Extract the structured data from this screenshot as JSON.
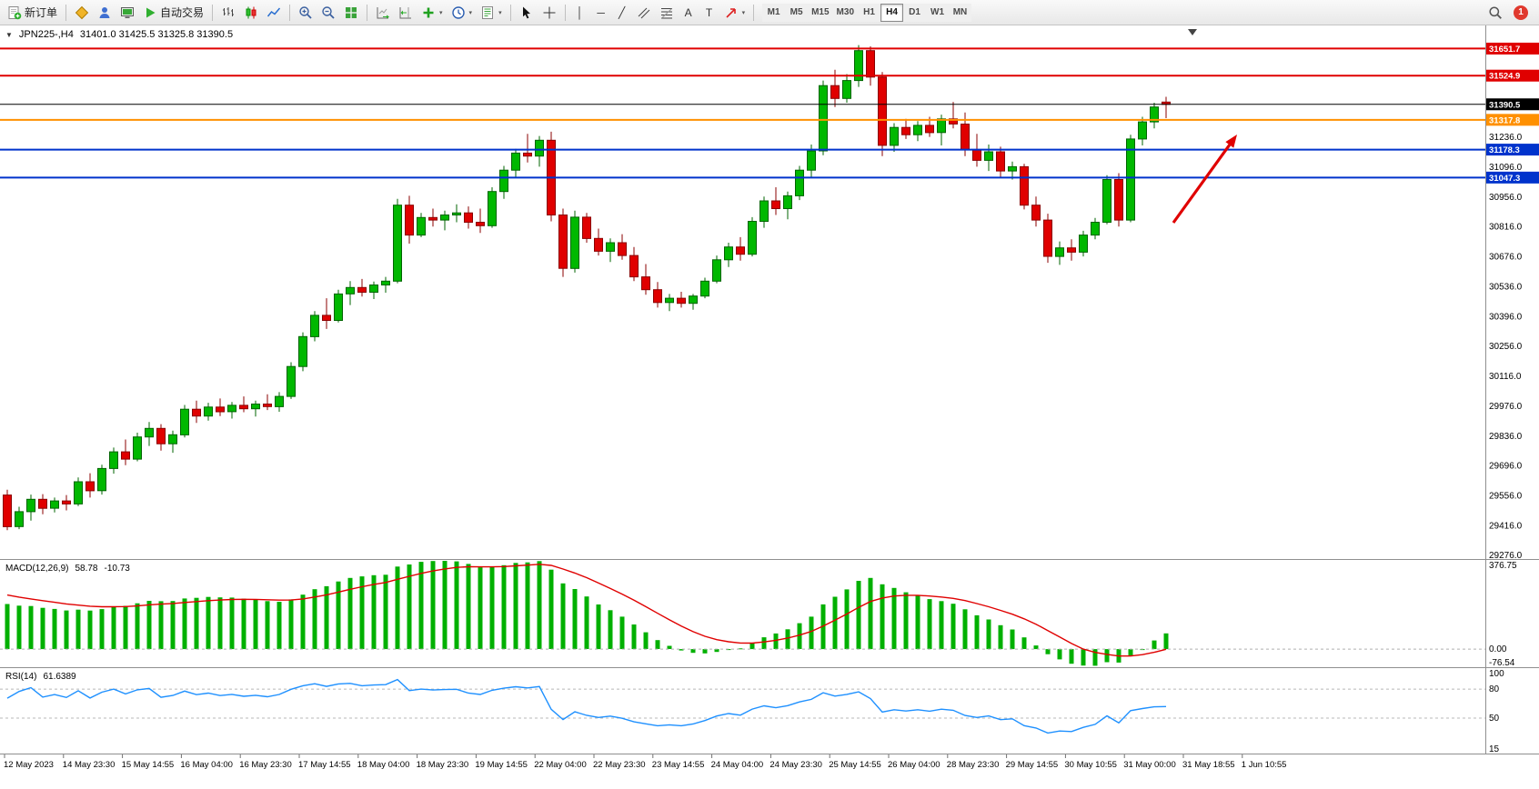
{
  "toolbar": {
    "new_order_label": "新订单",
    "autotrade_label": "自动交易",
    "timeframes": [
      "M1",
      "M5",
      "M15",
      "M30",
      "H1",
      "H4",
      "D1",
      "W1",
      "MN"
    ],
    "active_timeframe": "H4",
    "notification_count": "1",
    "glyphs": {
      "dropdown": "▾",
      "vline": "│",
      "hline": "─",
      "trendline": "╱",
      "text_tool": "A",
      "label_tool": "T"
    }
  },
  "header": {
    "collapse_icon": "▼",
    "symbol_period": "JPN225-,H4",
    "ohlc_text": "31401.0 31425.5 31325.8 31390.5"
  },
  "chart_data": {
    "type": "candlestick",
    "title": "JPN225-,H4",
    "y_range": [
      29260,
      31760
    ],
    "y_axis_ticks": [
      "31236.0",
      "31096.0",
      "30956.0",
      "30816.0",
      "30676.0",
      "30536.0",
      "30396.0",
      "30256.0",
      "30116.0",
      "29976.0",
      "29836.0",
      "29696.0",
      "29556.0",
      "29416.0",
      "29276.0"
    ],
    "x_labels": [
      "12 May 2023",
      "14 May 23:30",
      "15 May 14:55",
      "16 May 04:00",
      "16 May 23:30",
      "17 May 14:55",
      "18 May 04:00",
      "18 May 23:30",
      "19 May 14:55",
      "22 May 04:00",
      "22 May 23:30",
      "23 May 14:55",
      "24 May 04:00",
      "24 May 23:30",
      "25 May 14:55",
      "26 May 04:00",
      "28 May 23:30",
      "29 May 14:55",
      "30 May 10:55",
      "31 May 00:00",
      "31 May 18:55",
      "1 Jun 10:55"
    ],
    "levels": [
      {
        "price": 31651.7,
        "label": "31651.7",
        "color": "#e00000",
        "width": 2
      },
      {
        "price": 31524.9,
        "label": "31524.9",
        "color": "#e00000",
        "width": 2
      },
      {
        "price": 31390.5,
        "label": "31390.5",
        "color": "#000000",
        "width": 1,
        "current": true
      },
      {
        "price": 31317.8,
        "label": "31317.8",
        "color": "#ff9000",
        "width": 2
      },
      {
        "price": 31178.3,
        "label": "31178.3",
        "color": "#0033cc",
        "width": 2
      },
      {
        "price": 31047.3,
        "label": "31047.3",
        "color": "#0033cc",
        "width": 2
      }
    ],
    "arrow_annotation": {
      "from": [
        1290,
        217
      ],
      "to": [
        1360,
        120
      ],
      "color": "#e00000"
    },
    "candles": [
      [
        29560,
        29585,
        29395,
        29412
      ],
      [
        29412,
        29505,
        29400,
        29482
      ],
      [
        29482,
        29562,
        29440,
        29540
      ],
      [
        29540,
        29564,
        29470,
        29498
      ],
      [
        29498,
        29548,
        29478,
        29532
      ],
      [
        29532,
        29560,
        29488,
        29518
      ],
      [
        29518,
        29642,
        29508,
        29622
      ],
      [
        29622,
        29662,
        29548,
        29580
      ],
      [
        29580,
        29702,
        29562,
        29684
      ],
      [
        29684,
        29782,
        29660,
        29762
      ],
      [
        29762,
        29820,
        29700,
        29728
      ],
      [
        29728,
        29852,
        29718,
        29832
      ],
      [
        29832,
        29902,
        29790,
        29872
      ],
      [
        29872,
        29892,
        29768,
        29800
      ],
      [
        29800,
        29862,
        29758,
        29842
      ],
      [
        29842,
        29982,
        29830,
        29962
      ],
      [
        29962,
        30002,
        29898,
        29930
      ],
      [
        29930,
        29992,
        29908,
        29972
      ],
      [
        29972,
        30012,
        29930,
        29950
      ],
      [
        29950,
        29996,
        29918,
        29980
      ],
      [
        29980,
        30022,
        29948,
        29964
      ],
      [
        29964,
        30002,
        29928,
        29986
      ],
      [
        29986,
        30032,
        29958,
        29974
      ],
      [
        29974,
        30042,
        29950,
        30022
      ],
      [
        30022,
        30182,
        30010,
        30162
      ],
      [
        30162,
        30322,
        30140,
        30302
      ],
      [
        30302,
        30422,
        30280,
        30402
      ],
      [
        30402,
        30482,
        30338,
        30378
      ],
      [
        30378,
        30522,
        30368,
        30502
      ],
      [
        30502,
        30562,
        30450,
        30532
      ],
      [
        30532,
        30572,
        30490,
        30510
      ],
      [
        30510,
        30560,
        30478,
        30544
      ],
      [
        30544,
        30582,
        30508,
        30562
      ],
      [
        30562,
        30948,
        30552,
        30918
      ],
      [
        30918,
        30962,
        30738,
        30778
      ],
      [
        30778,
        30882,
        30768,
        30860
      ],
      [
        30860,
        30902,
        30818,
        30848
      ],
      [
        30848,
        30892,
        30800,
        30872
      ],
      [
        30872,
        30922,
        30838,
        30882
      ],
      [
        30882,
        30912,
        30808,
        30838
      ],
      [
        30838,
        30902,
        30788,
        30822
      ],
      [
        30822,
        31002,
        30812,
        30982
      ],
      [
        30982,
        31102,
        30948,
        31082
      ],
      [
        31082,
        31182,
        31048,
        31162
      ],
      [
        31162,
        31252,
        31118,
        31148
      ],
      [
        31148,
        31242,
        31098,
        31222
      ],
      [
        31222,
        31262,
        30842,
        30872
      ],
      [
        30872,
        30902,
        30582,
        30622
      ],
      [
        30622,
        30892,
        30602,
        30862
      ],
      [
        30862,
        30882,
        30742,
        30762
      ],
      [
        30762,
        30808,
        30682,
        30702
      ],
      [
        30702,
        30762,
        30652,
        30742
      ],
      [
        30742,
        30782,
        30662,
        30682
      ],
      [
        30682,
        30722,
        30562,
        30582
      ],
      [
        30582,
        30642,
        30498,
        30522
      ],
      [
        30522,
        30558,
        30438,
        30462
      ],
      [
        30462,
        30502,
        30422,
        30482
      ],
      [
        30482,
        30512,
        30438,
        30458
      ],
      [
        30458,
        30502,
        30428,
        30492
      ],
      [
        30492,
        30578,
        30482,
        30562
      ],
      [
        30562,
        30682,
        30552,
        30662
      ],
      [
        30662,
        30742,
        30628,
        30722
      ],
      [
        30722,
        30768,
        30658,
        30688
      ],
      [
        30688,
        30862,
        30678,
        30842
      ],
      [
        30842,
        30958,
        30812,
        30938
      ],
      [
        30938,
        31002,
        30872,
        30902
      ],
      [
        30902,
        30982,
        30852,
        30962
      ],
      [
        30962,
        31102,
        30942,
        31082
      ],
      [
        31082,
        31202,
        31048,
        31172
      ],
      [
        31172,
        31502,
        31152,
        31478
      ],
      [
        31478,
        31552,
        31378,
        31418
      ],
      [
        31418,
        31532,
        31398,
        31502
      ],
      [
        31502,
        31668,
        31472,
        31642
      ],
      [
        31642,
        31662,
        31478,
        31518
      ],
      [
        31518,
        31542,
        31148,
        31198
      ],
      [
        31198,
        31302,
        31168,
        31282
      ],
      [
        31282,
        31322,
        31228,
        31248
      ],
      [
        31248,
        31312,
        31218,
        31292
      ],
      [
        31292,
        31332,
        31238,
        31258
      ],
      [
        31258,
        31342,
        31198,
        31322
      ],
      [
        31322,
        31402,
        31278,
        31298
      ],
      [
        31298,
        31352,
        31148,
        31178
      ],
      [
        31178,
        31252,
        31098,
        31128
      ],
      [
        31128,
        31202,
        31078,
        31168
      ],
      [
        31168,
        31192,
        31048,
        31078
      ],
      [
        31078,
        31122,
        31038,
        31098
      ],
      [
        31098,
        31112,
        30898,
        30918
      ],
      [
        30918,
        30958,
        30818,
        30848
      ],
      [
        30848,
        30878,
        30648,
        30678
      ],
      [
        30678,
        30748,
        30638,
        30718
      ],
      [
        30718,
        30758,
        30658,
        30698
      ],
      [
        30698,
        30798,
        30678,
        30778
      ],
      [
        30778,
        30858,
        30758,
        30838
      ],
      [
        30838,
        31058,
        30828,
        31038
      ],
      [
        31038,
        31068,
        30818,
        30848
      ],
      [
        30848,
        31248,
        30838,
        31228
      ],
      [
        31228,
        31332,
        31198,
        31308
      ],
      [
        31308,
        31398,
        31278,
        31378
      ],
      [
        31401.0,
        31425.5,
        31325.8,
        31390.5
      ]
    ]
  },
  "macd_panel": {
    "label": "MACD(12,26,9)",
    "value_main": "58.78",
    "value_signal": "-10.73",
    "fast": 12,
    "slow": 26,
    "signal": 9,
    "axis_labels": [
      "376.75",
      "0.00",
      "-76.54"
    ],
    "histogram_color": "#00b000",
    "signal_color": "#e00000"
  },
  "rsi_panel": {
    "label": "RSI(14)",
    "value": "61.6389",
    "period": 14,
    "axis_labels": [
      "100",
      "80",
      "50",
      "15"
    ],
    "level_lines": [
      80,
      50
    ],
    "line_color": "#1e90ff"
  },
  "colors": {
    "up": "#00b800",
    "up_border": "#006400",
    "down": "#e00000",
    "down_border": "#8b0000",
    "background": "#ffffff",
    "axis_text": "#000000"
  }
}
